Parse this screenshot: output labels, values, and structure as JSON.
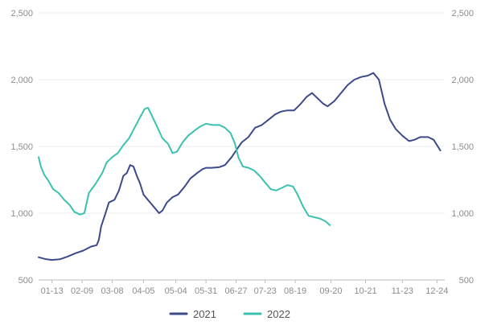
{
  "chart_data": {
    "type": "line",
    "title": "",
    "xlabel": "",
    "ylabel": "",
    "ylim": [
      500,
      2500
    ],
    "yticks": [
      "500",
      "1,000",
      "1,500",
      "2,000",
      "2,500"
    ],
    "ytick_values": [
      500,
      1000,
      1500,
      2000,
      2500
    ],
    "xlim": [
      "01-01",
      "12-31"
    ],
    "xticks": [
      "01-13",
      "02-09",
      "03-08",
      "04-05",
      "05-04",
      "05-31",
      "06-27",
      "07-23",
      "08-19",
      "09-20",
      "10-21",
      "11-23",
      "12-24"
    ],
    "xtick_dates": [
      "01-13",
      "02-09",
      "03-08",
      "04-05",
      "05-04",
      "05-31",
      "06-27",
      "07-23",
      "08-19",
      "09-20",
      "10-21",
      "11-23",
      "12-24"
    ],
    "grid": true,
    "legend": "bottom",
    "series": [
      {
        "name": "2021",
        "color": "#3d4a8c",
        "points": [
          [
            "01-01",
            670
          ],
          [
            "01-08",
            655
          ],
          [
            "01-13",
            650
          ],
          [
            "01-20",
            655
          ],
          [
            "01-27",
            675
          ],
          [
            "02-03",
            700
          ],
          [
            "02-10",
            720
          ],
          [
            "02-17",
            750
          ],
          [
            "02-22",
            760
          ],
          [
            "02-24",
            800
          ],
          [
            "02-26",
            900
          ],
          [
            "03-02",
            1000
          ],
          [
            "03-05",
            1080
          ],
          [
            "03-10",
            1100
          ],
          [
            "03-14",
            1170
          ],
          [
            "03-18",
            1280
          ],
          [
            "03-21",
            1300
          ],
          [
            "03-24",
            1360
          ],
          [
            "03-27",
            1350
          ],
          [
            "03-30",
            1280
          ],
          [
            "04-02",
            1220
          ],
          [
            "04-05",
            1140
          ],
          [
            "04-10",
            1090
          ],
          [
            "04-14",
            1050
          ],
          [
            "04-19",
            1000
          ],
          [
            "04-22",
            1020
          ],
          [
            "04-26",
            1080
          ],
          [
            "05-01",
            1120
          ],
          [
            "05-06",
            1140
          ],
          [
            "05-12",
            1200
          ],
          [
            "05-17",
            1260
          ],
          [
            "05-23",
            1300
          ],
          [
            "05-28",
            1330
          ],
          [
            "05-31",
            1340
          ],
          [
            "06-05",
            1340
          ],
          [
            "06-12",
            1345
          ],
          [
            "06-17",
            1360
          ],
          [
            "06-23",
            1420
          ],
          [
            "06-27",
            1470
          ],
          [
            "07-02",
            1530
          ],
          [
            "07-08",
            1570
          ],
          [
            "07-14",
            1640
          ],
          [
            "07-20",
            1660
          ],
          [
            "07-26",
            1700
          ],
          [
            "08-01",
            1740
          ],
          [
            "08-06",
            1760
          ],
          [
            "08-12",
            1770
          ],
          [
            "08-18",
            1770
          ],
          [
            "08-24",
            1820
          ],
          [
            "08-29",
            1870
          ],
          [
            "09-03",
            1900
          ],
          [
            "09-08",
            1860
          ],
          [
            "09-13",
            1820
          ],
          [
            "09-17",
            1800
          ],
          [
            "09-23",
            1840
          ],
          [
            "09-29",
            1900
          ],
          [
            "10-05",
            1960
          ],
          [
            "10-11",
            2000
          ],
          [
            "10-17",
            2020
          ],
          [
            "10-23",
            2030
          ],
          [
            "10-28",
            2050
          ],
          [
            "11-02",
            2000
          ],
          [
            "11-07",
            1820
          ],
          [
            "11-12",
            1700
          ],
          [
            "11-17",
            1630
          ],
          [
            "11-23",
            1580
          ],
          [
            "11-29",
            1540
          ],
          [
            "12-04",
            1550
          ],
          [
            "12-09",
            1570
          ],
          [
            "12-16",
            1570
          ],
          [
            "12-21",
            1550
          ],
          [
            "12-27",
            1470
          ]
        ]
      },
      {
        "name": "2022",
        "color": "#3cc1b0",
        "points": [
          [
            "01-01",
            1420
          ],
          [
            "01-03",
            1350
          ],
          [
            "01-06",
            1290
          ],
          [
            "01-10",
            1240
          ],
          [
            "01-14",
            1180
          ],
          [
            "01-19",
            1150
          ],
          [
            "01-24",
            1100
          ],
          [
            "01-29",
            1060
          ],
          [
            "02-02",
            1010
          ],
          [
            "02-07",
            990
          ],
          [
            "02-11",
            1000
          ],
          [
            "02-15",
            1150
          ],
          [
            "02-21",
            1220
          ],
          [
            "02-27",
            1300
          ],
          [
            "03-03",
            1380
          ],
          [
            "03-08",
            1420
          ],
          [
            "03-13",
            1450
          ],
          [
            "03-18",
            1510
          ],
          [
            "03-23",
            1560
          ],
          [
            "03-28",
            1640
          ],
          [
            "04-02",
            1720
          ],
          [
            "04-06",
            1780
          ],
          [
            "04-09",
            1790
          ],
          [
            "04-12",
            1740
          ],
          [
            "04-17",
            1650
          ],
          [
            "04-22",
            1560
          ],
          [
            "04-27",
            1520
          ],
          [
            "05-01",
            1450
          ],
          [
            "05-05",
            1460
          ],
          [
            "05-10",
            1530
          ],
          [
            "05-15",
            1580
          ],
          [
            "05-21",
            1620
          ],
          [
            "05-26",
            1650
          ],
          [
            "05-31",
            1670
          ],
          [
            "06-06",
            1660
          ],
          [
            "06-12",
            1660
          ],
          [
            "06-17",
            1640
          ],
          [
            "06-22",
            1600
          ],
          [
            "06-26",
            1520
          ],
          [
            "06-29",
            1420
          ],
          [
            "07-03",
            1350
          ],
          [
            "07-08",
            1340
          ],
          [
            "07-13",
            1320
          ],
          [
            "07-18",
            1280
          ],
          [
            "07-23",
            1230
          ],
          [
            "07-28",
            1180
          ],
          [
            "08-02",
            1170
          ],
          [
            "08-07",
            1190
          ],
          [
            "08-12",
            1210
          ],
          [
            "08-17",
            1200
          ],
          [
            "08-21",
            1140
          ],
          [
            "08-26",
            1050
          ],
          [
            "08-31",
            980
          ],
          [
            "09-05",
            970
          ],
          [
            "09-10",
            960
          ],
          [
            "09-15",
            940
          ],
          [
            "09-19",
            910
          ]
        ]
      }
    ]
  }
}
